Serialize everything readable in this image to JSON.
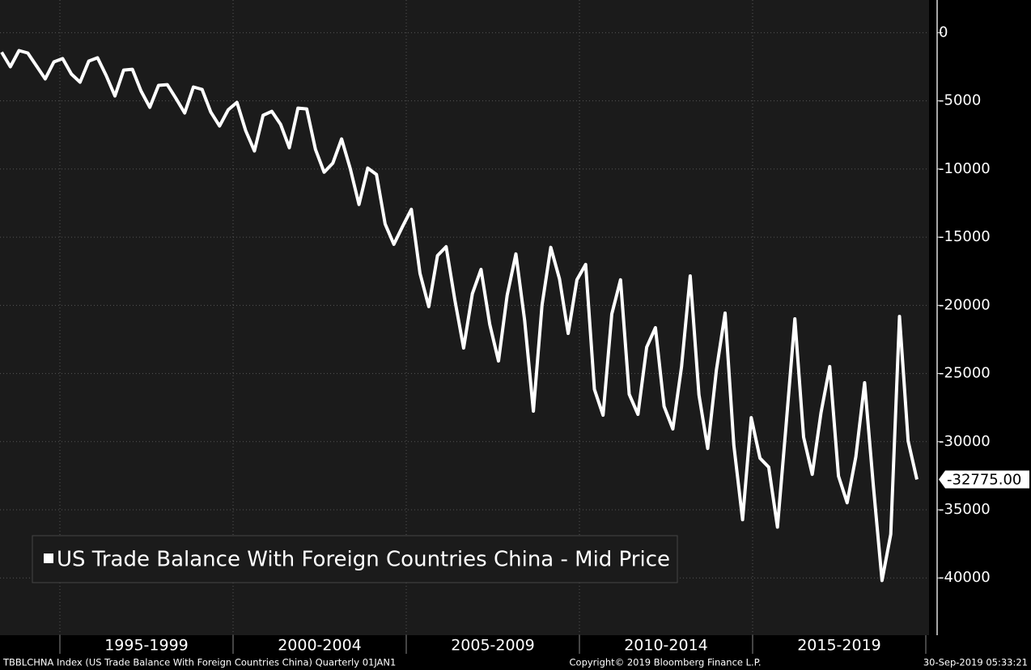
{
  "chart_data": {
    "type": "line",
    "x_labels": [
      "1995-1999",
      "2000-2004",
      "2005-2009",
      "2010-2014",
      "2015-2019"
    ],
    "series": [
      {
        "name": "US Trade Balance With Foreign Countries China - Mid Price",
        "color": "#ffffff",
        "values": [
          -1430,
          -2500,
          -1310,
          -1490,
          -2440,
          -3390,
          -2140,
          -1900,
          -3030,
          -3630,
          -2080,
          -1840,
          -3150,
          -4640,
          -2740,
          -2680,
          -4280,
          -5470,
          -3860,
          -3810,
          -4820,
          -5890,
          -3980,
          -4160,
          -5830,
          -6840,
          -5650,
          -5110,
          -7190,
          -8680,
          -6060,
          -5770,
          -6720,
          -8440,
          -5530,
          -5590,
          -8560,
          -10230,
          -9570,
          -7790,
          -9990,
          -12600,
          -9930,
          -10400,
          -14030,
          -15520,
          -14210,
          -12960,
          -17660,
          -20090,
          -16350,
          -15700,
          -19620,
          -23130,
          -19140,
          -17360,
          -21400,
          -24080,
          -19260,
          -16230,
          -21110,
          -27760,
          -19980,
          -15750,
          -18070,
          -22060,
          -18130,
          -17000,
          -26160,
          -28060,
          -20630,
          -18130,
          -26520,
          -28000,
          -23070,
          -21640,
          -27410,
          -29070,
          -24490,
          -17840,
          -26570,
          -30500,
          -24730,
          -20570,
          -30260,
          -35730,
          -28240,
          -31210,
          -31870,
          -36270,
          -28770,
          -20990,
          -29670,
          -32400,
          -27880,
          -24490,
          -32520,
          -34480,
          -31090,
          -25680,
          -33170,
          -40190,
          -36800,
          -20810,
          -29960,
          -32775
        ]
      }
    ],
    "last_value_label": "-32775.00",
    "ylim": [
      -44200,
      2400
    ],
    "yticks": [
      0,
      -5000,
      -10000,
      -15000,
      -20000,
      -25000,
      -30000,
      -35000,
      -40000
    ],
    "grid": true,
    "legend": "bottom-left",
    "footer": {
      "left": "TBBLCHNA Index (US Trade Balance With Foreign Countries China)  Quarterly 01JAN1",
      "center": "Copyright© 2019 Bloomberg Finance L.P.",
      "right": "30-Sep-2019 05:33:21"
    }
  }
}
